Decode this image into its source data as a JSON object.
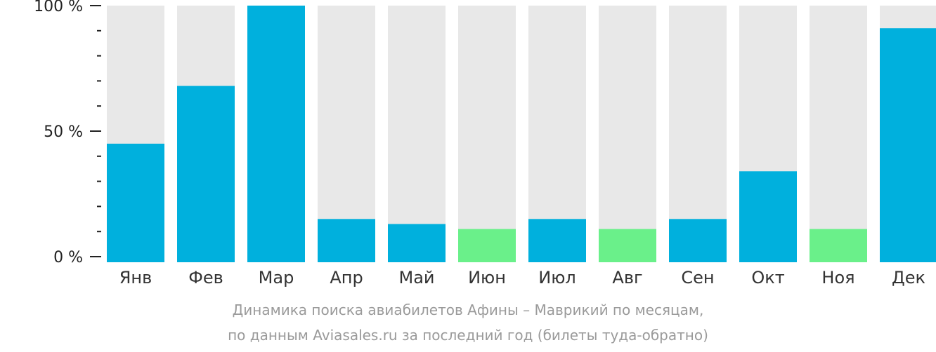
{
  "chart_data": {
    "type": "bar",
    "categories": [
      "Янв",
      "Фев",
      "Мар",
      "Апр",
      "Май",
      "Июн",
      "Июл",
      "Авг",
      "Сен",
      "Окт",
      "Ноя",
      "Дек"
    ],
    "values": [
      45,
      68,
      100,
      15,
      13,
      11,
      15,
      11,
      15,
      34,
      11,
      91
    ],
    "ylim": [
      0,
      100
    ],
    "yticks": [
      {
        "value": 100,
        "label": "100 %"
      },
      {
        "value": 50,
        "label": "50 %"
      },
      {
        "value": 0,
        "label": "0 %"
      }
    ],
    "colors": {
      "bar": "#00b0dd",
      "bar_low": "#6af08a",
      "track": "#e8e8e8"
    },
    "low_value_bars": [
      "Июн",
      "Авг",
      "Ноя"
    ]
  },
  "caption": {
    "line1": "Динамика поиска авиабилетов Афины – Маврикий по месяцам,",
    "line2": "по данным Aviasales.ru за последний год (билеты туда-обратно)"
  }
}
